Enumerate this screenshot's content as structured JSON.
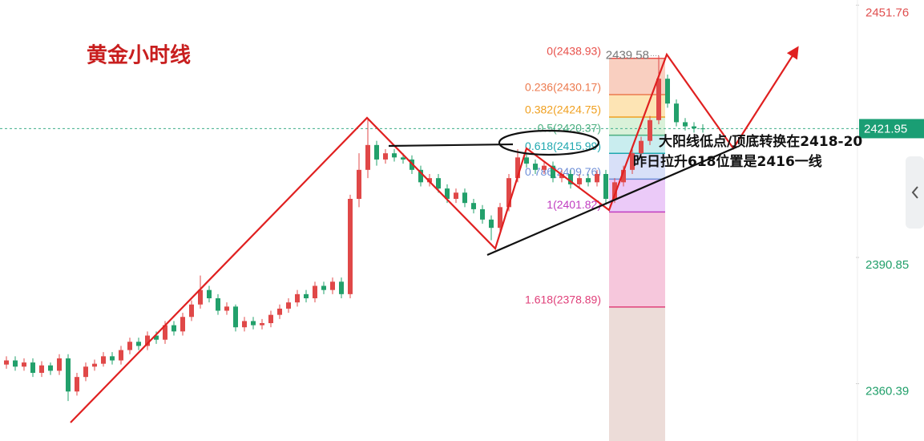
{
  "chart_data": {
    "type": "candlestick",
    "title": "黄金小时线",
    "ylim": [
      2346.55,
      2453
    ],
    "yticks": [
      2451.76,
      2390.85,
      2360.39
    ],
    "current_price": 2421.95,
    "high_label": 2439.58,
    "up_color": "#e04848",
    "down_color": "#22a06b",
    "open": [
      2365,
      2366,
      2364.5,
      2365.5,
      2363,
      2364.8,
      2363.5,
      2366.5,
      2358.5,
      2362,
      2364.5,
      2365.2,
      2367,
      2366,
      2368.5,
      2370.5,
      2369.5,
      2372,
      2371,
      2374.5,
      2373,
      2376.5,
      2379.5,
      2383,
      2381,
      2378,
      2379,
      2374,
      2375.5,
      2374.5,
      2375,
      2377,
      2378.5,
      2380,
      2382,
      2381,
      2384,
      2383,
      2385,
      2382,
      2405,
      2412,
      2418,
      2414.5,
      2416,
      2415,
      2414.5,
      2412,
      2409,
      2410,
      2407.5,
      2405,
      2406.5,
      2404,
      2402.5,
      2400,
      2398,
      2403,
      2410,
      2415,
      2413.5,
      2412,
      2413,
      2410,
      2411,
      2408.5,
      2410,
      2409,
      2411,
      2405,
      2409,
      2412,
      2416,
      2419,
      2424,
      2434,
      2428,
      2423.5,
      2422.5,
      2422
    ],
    "high": [
      2367,
      2367,
      2366.5,
      2366.5,
      2365.8,
      2365.5,
      2367.5,
      2367.5,
      2363,
      2365.5,
      2366.2,
      2368,
      2368,
      2369.5,
      2371.5,
      2371.5,
      2373,
      2373,
      2375.5,
      2375.5,
      2377.5,
      2380.5,
      2386.5,
      2384,
      2382,
      2380,
      2379.5,
      2376.5,
      2376.5,
      2376,
      2378,
      2379.5,
      2381,
      2383,
      2383,
      2385,
      2385,
      2386,
      2386,
      2406,
      2416,
      2424.3,
      2419,
      2417,
      2417,
      2416,
      2415.5,
      2413,
      2411,
      2411,
      2408.5,
      2407.5,
      2407.5,
      2405,
      2403.5,
      2401,
      2404,
      2411,
      2417,
      2416,
      2414.5,
      2414,
      2414,
      2412,
      2412,
      2411,
      2411,
      2412,
      2412,
      2410,
      2413,
      2417,
      2420,
      2425,
      2439.58,
      2435,
      2429,
      2424.5,
      2423.5,
      2423
    ],
    "low": [
      2364,
      2363.5,
      2363.5,
      2362,
      2362,
      2362.5,
      2362.5,
      2356.2,
      2357.5,
      2361,
      2363.5,
      2364.5,
      2365,
      2365,
      2367.5,
      2368.5,
      2368.5,
      2370,
      2370,
      2372,
      2372,
      2375.5,
      2378.5,
      2380,
      2377,
      2377,
      2373,
      2373,
      2373.5,
      2373.5,
      2374,
      2376,
      2377.5,
      2379,
      2380,
      2380,
      2382,
      2382,
      2381,
      2381,
      2403,
      2410,
      2413,
      2413.5,
      2414,
      2413.5,
      2411,
      2408,
      2408,
      2406.5,
      2404,
      2404,
      2403,
      2401.5,
      2399,
      2395,
      2397,
      2402,
      2409,
      2412.5,
      2411,
      2411,
      2409,
      2409,
      2407.5,
      2407.5,
      2408,
      2408,
      2403.6,
      2404,
      2408,
      2411,
      2415,
      2418,
      2423,
      2427,
      2422.5,
      2421.5,
      2421,
      2421
    ],
    "close": [
      2366,
      2364.5,
      2365.5,
      2363,
      2364.8,
      2363.5,
      2366.5,
      2358.5,
      2362,
      2364.5,
      2365.2,
      2367,
      2366,
      2368.5,
      2370.5,
      2369.5,
      2372,
      2371,
      2374.5,
      2373,
      2376.5,
      2379.5,
      2383,
      2381,
      2378,
      2379,
      2374,
      2375.5,
      2374.5,
      2375,
      2377,
      2378.5,
      2380,
      2382,
      2381,
      2384,
      2383,
      2385,
      2382,
      2405,
      2412,
      2418,
      2414.5,
      2416,
      2415,
      2414.5,
      2412,
      2409,
      2410,
      2407.5,
      2405,
      2406.5,
      2404,
      2402.5,
      2400,
      2398,
      2403,
      2410,
      2415,
      2413.5,
      2412,
      2413,
      2410,
      2411,
      2408.5,
      2410,
      2409,
      2411,
      2405,
      2409,
      2412,
      2416,
      2419,
      2424,
      2434,
      2428,
      2423.5,
      2422.5,
      2422,
      2421.95
    ],
    "fib_levels": [
      {
        "value": 2438.93,
        "label": "0(2438.93)",
        "color": "#e8504a",
        "band": "#f9cfc0"
      },
      {
        "value": 2430.17,
        "label": "0.236(2430.17)",
        "color": "#ec7a4e",
        "band": "#fde4b4"
      },
      {
        "value": 2424.75,
        "label": "0.382(2424.75)",
        "color": "#f0a020",
        "band": "#d9f1d9"
      },
      {
        "value": 2420.37,
        "label": "0.5(2420.37)",
        "color": "#4caf80",
        "band": "#c9edef"
      },
      {
        "value": 2415.99,
        "label": "0.618(2415.99)",
        "color": "#20a8b0",
        "band": "#d8e0f8"
      },
      {
        "value": 2409.76,
        "label": "0.786(2409.76)",
        "color": "#6f8fd8",
        "band": "#ebcaf8"
      },
      {
        "value": 2401.82,
        "label": "1(2401.82)",
        "color": "#c03cc0",
        "band": "#f6c7dc"
      },
      {
        "value": 2378.89,
        "label": "1.618(2378.89)",
        "color": "#e0407a",
        "band": "#ecdcd8"
      }
    ],
    "annotations": [
      "大阳线低点/顶底转换在2418-20",
      "昨日拉升618位置是2416一线"
    ]
  }
}
